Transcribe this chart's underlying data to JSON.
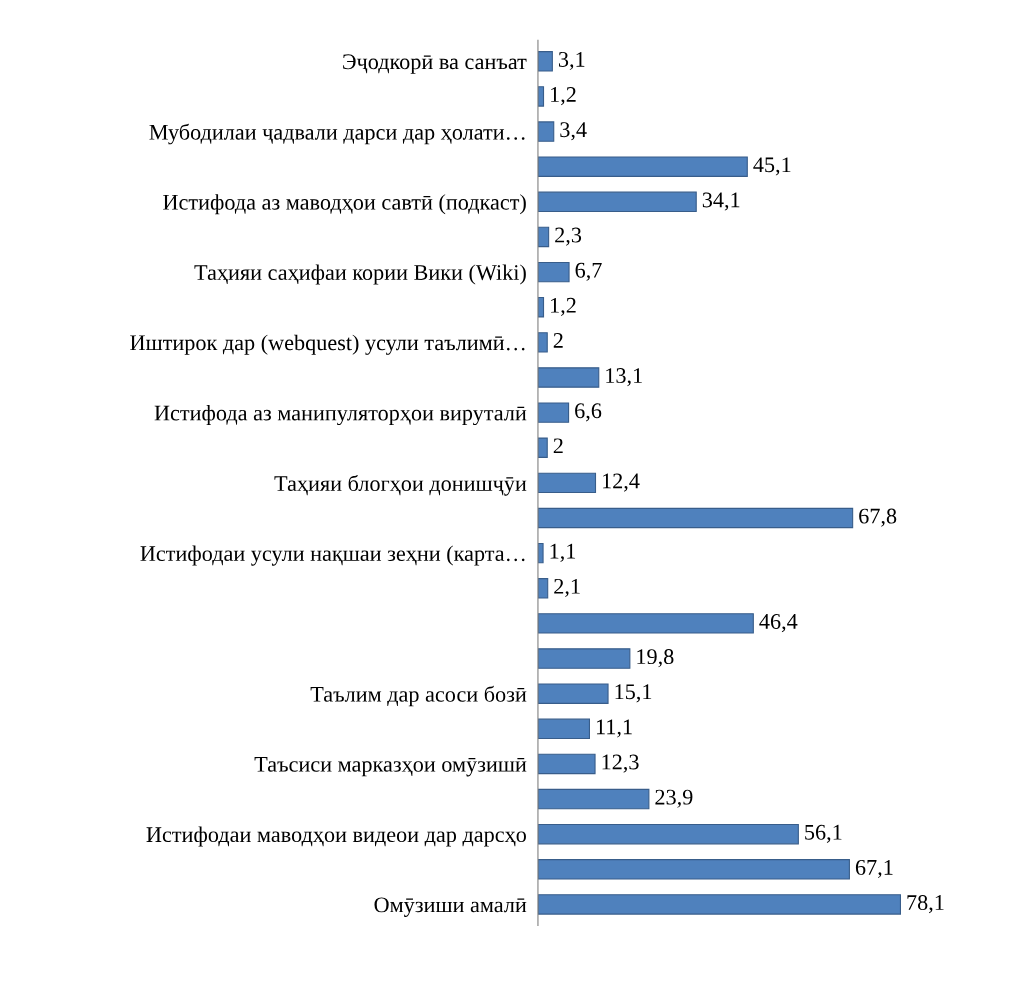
{
  "chart_data": {
    "type": "bar",
    "orientation": "horizontal",
    "color": "#4f81bd",
    "tick_labels": "y",
    "grid": false,
    "legend": false,
    "categories": [
      "Эҷодкорӣ ва санъат",
      null,
      "Мубодилаи ҷадвали дарси дар ҳолати…",
      null,
      "Истифода аз маводҳои савтӣ (подкаст)",
      null,
      "Таҳияи саҳифаи кории Вики (Wiki)",
      null,
      "Иштирок дар (webquest) усули таълимӣ…",
      null,
      "Истифода аз манипуляторҳои вируталӣ",
      null,
      "Таҳияи блогҳои донишҷӯи",
      null,
      "Истифодаи усули нақшаи зеҳни (карта…",
      null,
      null,
      null,
      "Таълим дар асоси бозӣ",
      null,
      "Таъсиси марказҳои омӯзишӣ",
      null,
      "Истифодаи маводҳои видеои дар дарсҳо",
      null,
      "Омӯзиши амалӣ"
    ],
    "values": [
      3.1,
      1.2,
      3.4,
      45.1,
      34.1,
      2.3,
      6.7,
      1.2,
      2,
      13.1,
      6.6,
      2,
      12.4,
      67.8,
      1.1,
      2.1,
      46.4,
      19.8,
      15.1,
      11.1,
      12.3,
      23.9,
      56.1,
      67.1,
      78.1
    ],
    "value_labels": [
      "3,1",
      "1,2",
      "3,4",
      "45,1",
      "34,1",
      "2,3",
      "6,7",
      "1,2",
      "2",
      "13,1",
      "6,6",
      "2",
      "12,4",
      "67,8",
      "1,1",
      "2,1",
      "46,4",
      "19,8",
      "15,1",
      "11,1",
      "12,3",
      "23,9",
      "56,1",
      "67,1",
      "78,1"
    ]
  }
}
